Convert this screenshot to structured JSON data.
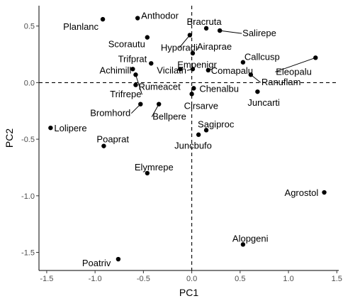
{
  "chart_data": {
    "type": "scatter",
    "title": "",
    "xlabel": "PC1",
    "ylabel": "PC2",
    "xlim": [
      -1.58,
      1.52
    ],
    "ylim": [
      -1.66,
      0.68
    ],
    "xticks": [
      -1.5,
      -1.0,
      -0.5,
      0.0,
      0.5,
      1.0,
      1.5
    ],
    "xtick_labels": [
      "-1.5",
      "-1.0",
      "-0.5",
      "0.0",
      "0.5",
      "1.0",
      "1.5"
    ],
    "yticks": [
      -1.5,
      -1.0,
      -0.5,
      0.0,
      0.5
    ],
    "ytick_labels": [
      "-1.5",
      "-1.0",
      "-0.5",
      "0.0",
      "0.5"
    ],
    "reference_lines": {
      "x": 0,
      "y": 0,
      "style": "dashed"
    },
    "grid": false,
    "points": [
      {
        "name": "Planlanc",
        "x": -0.92,
        "y": 0.56
      },
      {
        "name": "Anthodor",
        "x": -0.56,
        "y": 0.57
      },
      {
        "name": "Bracruta",
        "x": 0.15,
        "y": 0.48
      },
      {
        "name": "Salirepe",
        "x": 0.29,
        "y": 0.46
      },
      {
        "name": "Scorautu",
        "x": -0.46,
        "y": 0.4
      },
      {
        "name": "Hyporadi",
        "x": -0.02,
        "y": 0.42
      },
      {
        "name": "Airaprae",
        "x": 0.01,
        "y": 0.26
      },
      {
        "name": "Callcusp",
        "x": 0.53,
        "y": 0.18
      },
      {
        "name": "Eleopalu",
        "x": 1.28,
        "y": 0.22
      },
      {
        "name": "Trifprat",
        "x": -0.42,
        "y": 0.17
      },
      {
        "name": "Empenigr",
        "x": -0.12,
        "y": 0.12
      },
      {
        "name": "Comapalu",
        "x": 0.17,
        "y": 0.11
      },
      {
        "name": "Vicilath",
        "x": 0.01,
        "y": 0.12
      },
      {
        "name": "Achimill",
        "x": -0.61,
        "y": 0.12
      },
      {
        "name": "Ranuflam",
        "x": 0.61,
        "y": 0.07
      },
      {
        "name": "Trifrepe",
        "x": -0.58,
        "y": 0.07
      },
      {
        "name": "Rumeacet",
        "x": -0.58,
        "y": -0.02
      },
      {
        "name": "Chenalbu",
        "x": 0.02,
        "y": -0.05
      },
      {
        "name": "Juncarti",
        "x": 0.68,
        "y": -0.08
      },
      {
        "name": "Cirsarve",
        "x": 0.0,
        "y": -0.1
      },
      {
        "name": "Bromhord",
        "x": -0.53,
        "y": -0.19
      },
      {
        "name": "Bellpere",
        "x": -0.34,
        "y": -0.19
      },
      {
        "name": "Sagiproc",
        "x": 0.15,
        "y": -0.42
      },
      {
        "name": "Juncbufo",
        "x": 0.07,
        "y": -0.46
      },
      {
        "name": "Lolipere",
        "x": -1.46,
        "y": -0.4
      },
      {
        "name": "Poaprat",
        "x": -0.91,
        "y": -0.56
      },
      {
        "name": "Elymrepe",
        "x": -0.46,
        "y": -0.8
      },
      {
        "name": "Agrostol",
        "x": 1.37,
        "y": -0.97
      },
      {
        "name": "Alopgeni",
        "x": 0.53,
        "y": -1.43
      },
      {
        "name": "Poatriv",
        "x": -0.76,
        "y": -1.56
      }
    ]
  }
}
